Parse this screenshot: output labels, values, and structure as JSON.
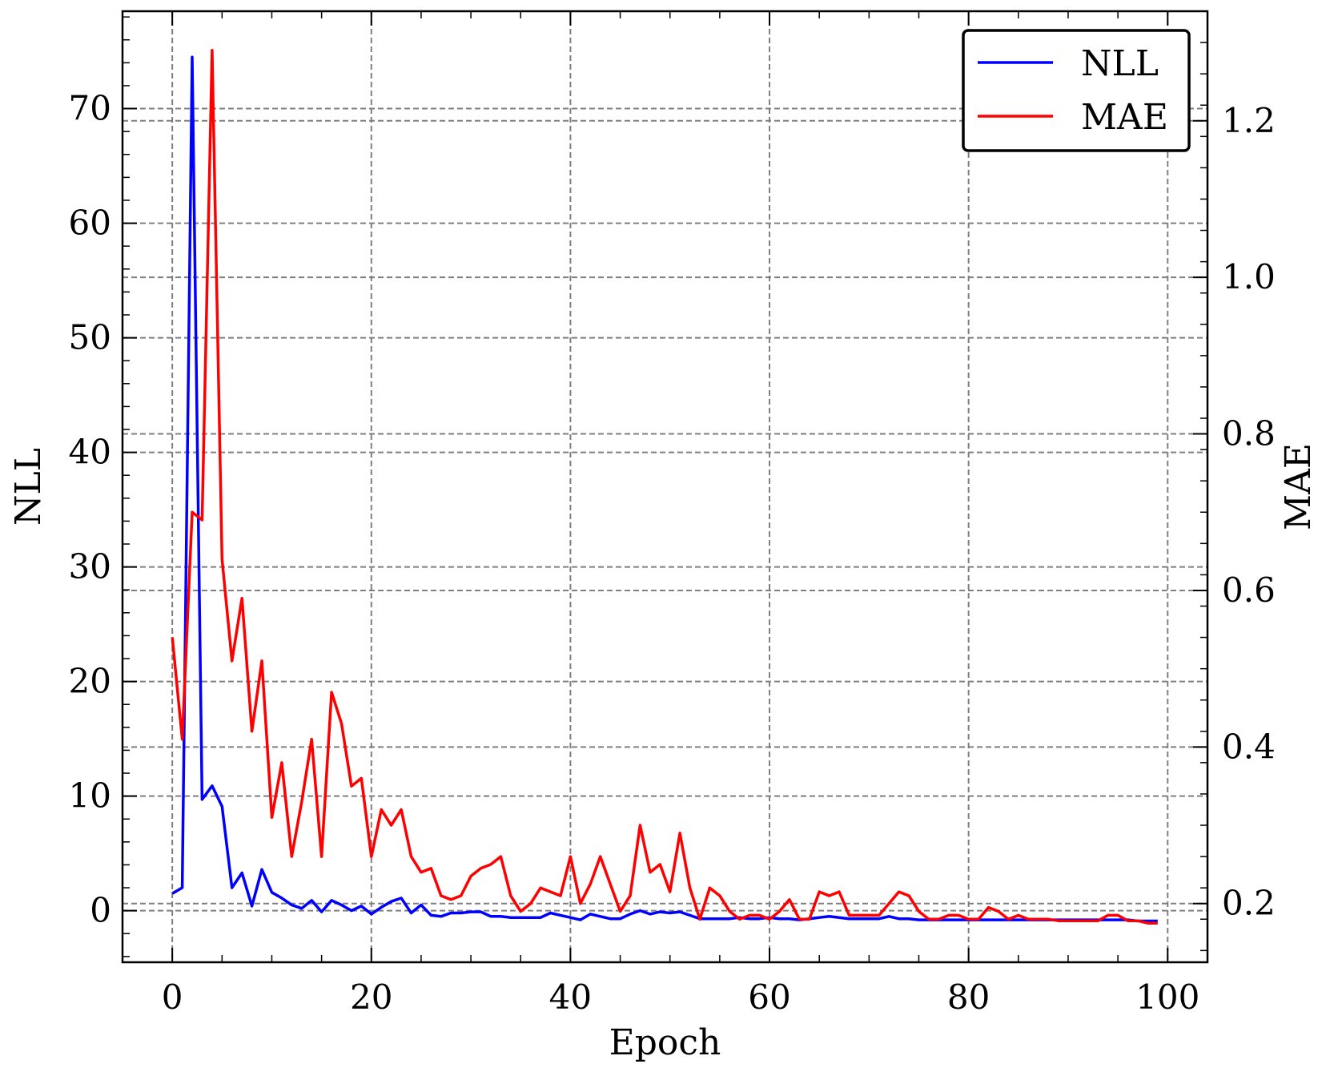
{
  "chart_data": {
    "type": "line",
    "xlabel": "Epoch",
    "ylabel": "NLL",
    "ylabel_right": "MAE",
    "xlim": [
      -5,
      104
    ],
    "ylim": [
      -4.5,
      78.5
    ],
    "ylim_right": [
      0.125,
      1.34
    ],
    "x_ticks": [
      0,
      20,
      40,
      60,
      80,
      100
    ],
    "x_tick_labels": [
      "0",
      "20",
      "40",
      "60",
      "80",
      "100"
    ],
    "y_ticks": [
      0,
      10,
      20,
      30,
      40,
      50,
      60,
      70
    ],
    "y_tick_labels": [
      "0",
      "10",
      "20",
      "30",
      "40",
      "50",
      "60",
      "70"
    ],
    "y_ticks_right": [
      0.2,
      0.4,
      0.6,
      0.8,
      1.0,
      1.2
    ],
    "y_tick_labels_right": [
      "0.2",
      "0.4",
      "0.6",
      "0.8",
      "1.0",
      "1.2"
    ],
    "grid": true,
    "legend_position": "top-right",
    "x": [
      0,
      1,
      2,
      3,
      4,
      5,
      6,
      7,
      8,
      9,
      10,
      11,
      12,
      13,
      14,
      15,
      16,
      17,
      18,
      19,
      20,
      21,
      22,
      23,
      24,
      25,
      26,
      27,
      28,
      29,
      30,
      31,
      32,
      33,
      34,
      35,
      36,
      37,
      38,
      39,
      40,
      41,
      42,
      43,
      44,
      45,
      46,
      47,
      48,
      49,
      50,
      51,
      52,
      53,
      54,
      55,
      56,
      57,
      58,
      59,
      60,
      61,
      62,
      63,
      64,
      65,
      66,
      67,
      68,
      69,
      70,
      71,
      72,
      73,
      74,
      75,
      76,
      77,
      78,
      79,
      80,
      81,
      82,
      83,
      84,
      85,
      86,
      87,
      88,
      89,
      90,
      91,
      92,
      93,
      94,
      95,
      96,
      97,
      98,
      99
    ],
    "series": [
      {
        "name": "NLL",
        "axis": "left",
        "color": "#0000ff",
        "values": [
          1.5,
          2.0,
          74.5,
          9.7,
          10.9,
          9.1,
          2.0,
          3.3,
          0.4,
          3.6,
          1.6,
          1.1,
          0.5,
          0.2,
          0.9,
          -0.1,
          0.9,
          0.5,
          0.0,
          0.4,
          -0.3,
          0.3,
          0.8,
          1.1,
          -0.2,
          0.5,
          -0.4,
          -0.5,
          -0.2,
          -0.2,
          -0.1,
          -0.1,
          -0.5,
          -0.5,
          -0.6,
          -0.6,
          -0.6,
          -0.6,
          -0.2,
          -0.4,
          -0.6,
          -0.8,
          -0.3,
          -0.5,
          -0.7,
          -0.7,
          -0.3,
          0.0,
          -0.3,
          -0.1,
          -0.2,
          -0.1,
          -0.4,
          -0.7,
          -0.7,
          -0.7,
          -0.7,
          -0.6,
          -0.7,
          -0.7,
          -0.6,
          -0.7,
          -0.7,
          -0.8,
          -0.7,
          -0.6,
          -0.5,
          -0.6,
          -0.7,
          -0.7,
          -0.7,
          -0.7,
          -0.5,
          -0.7,
          -0.7,
          -0.8,
          -0.8,
          -0.8,
          -0.8,
          -0.8,
          -0.8,
          -0.8,
          -0.8,
          -0.8,
          -0.8,
          -0.8,
          -0.8,
          -0.8,
          -0.8,
          -0.8,
          -0.8,
          -0.8,
          -0.8,
          -0.8,
          -0.8,
          -0.8,
          -0.8,
          -0.9,
          -0.9,
          -0.9
        ]
      },
      {
        "name": "MAE",
        "axis": "right",
        "color": "#ff0000",
        "values": [
          0.54,
          0.41,
          0.7,
          0.69,
          1.29,
          0.64,
          0.51,
          0.59,
          0.42,
          0.51,
          0.31,
          0.38,
          0.26,
          0.33,
          0.41,
          0.26,
          0.47,
          0.43,
          0.35,
          0.36,
          0.26,
          0.32,
          0.3,
          0.32,
          0.26,
          0.24,
          0.245,
          0.21,
          0.205,
          0.21,
          0.235,
          0.245,
          0.25,
          0.26,
          0.21,
          0.19,
          0.2,
          0.22,
          0.215,
          0.21,
          0.26,
          0.2,
          0.225,
          0.26,
          0.225,
          0.19,
          0.21,
          0.3,
          0.24,
          0.25,
          0.215,
          0.29,
          0.22,
          0.18,
          0.22,
          0.21,
          0.19,
          0.18,
          0.185,
          0.185,
          0.18,
          0.19,
          0.205,
          0.18,
          0.18,
          0.215,
          0.21,
          0.215,
          0.185,
          0.185,
          0.185,
          0.185,
          0.2,
          0.215,
          0.21,
          0.19,
          0.18,
          0.18,
          0.185,
          0.185,
          0.18,
          0.18,
          0.195,
          0.19,
          0.18,
          0.185,
          0.18,
          0.18,
          0.18,
          0.178,
          0.178,
          0.178,
          0.178,
          0.178,
          0.185,
          0.185,
          0.178,
          0.178,
          0.175,
          0.175
        ]
      }
    ]
  }
}
